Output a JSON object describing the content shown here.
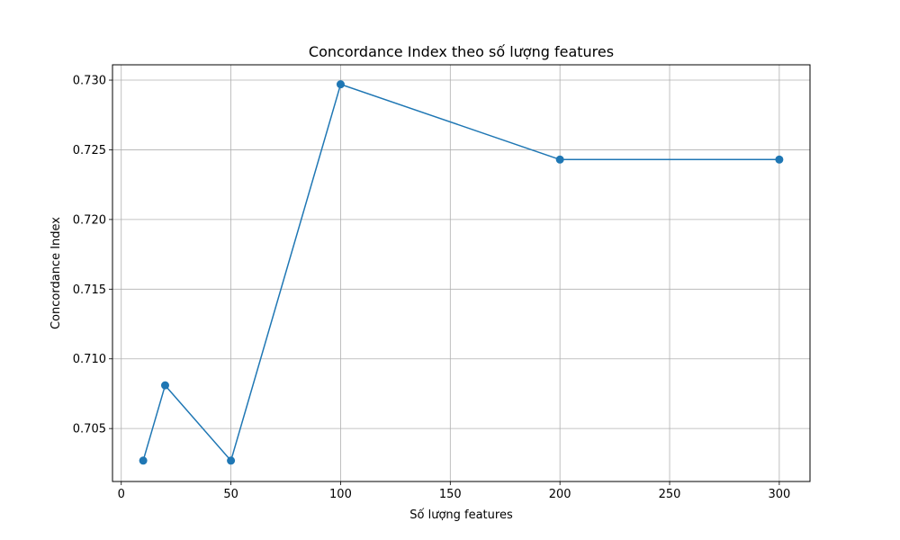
{
  "chart_data": {
    "type": "line",
    "title": "Concordance Index theo số lượng features",
    "xlabel": "Số lượng features",
    "ylabel": "Concordance Index",
    "xlim": [
      -4,
      314
    ],
    "ylim": [
      0.7012,
      0.7311
    ],
    "xticks": [
      0,
      50,
      100,
      150,
      200,
      250,
      300
    ],
    "yticks": [
      0.705,
      0.71,
      0.715,
      0.72,
      0.725,
      0.73
    ],
    "ytick_labels": [
      "0.705",
      "0.710",
      "0.715",
      "0.720",
      "0.725",
      "0.730"
    ],
    "grid": true,
    "series": [
      {
        "color": "#1f77b4",
        "marker": "circle",
        "x": [
          10,
          20,
          50,
          100,
          200,
          300
        ],
        "y": [
          0.7027,
          0.7081,
          0.7027,
          0.7297,
          0.7243,
          0.7243
        ]
      }
    ]
  }
}
